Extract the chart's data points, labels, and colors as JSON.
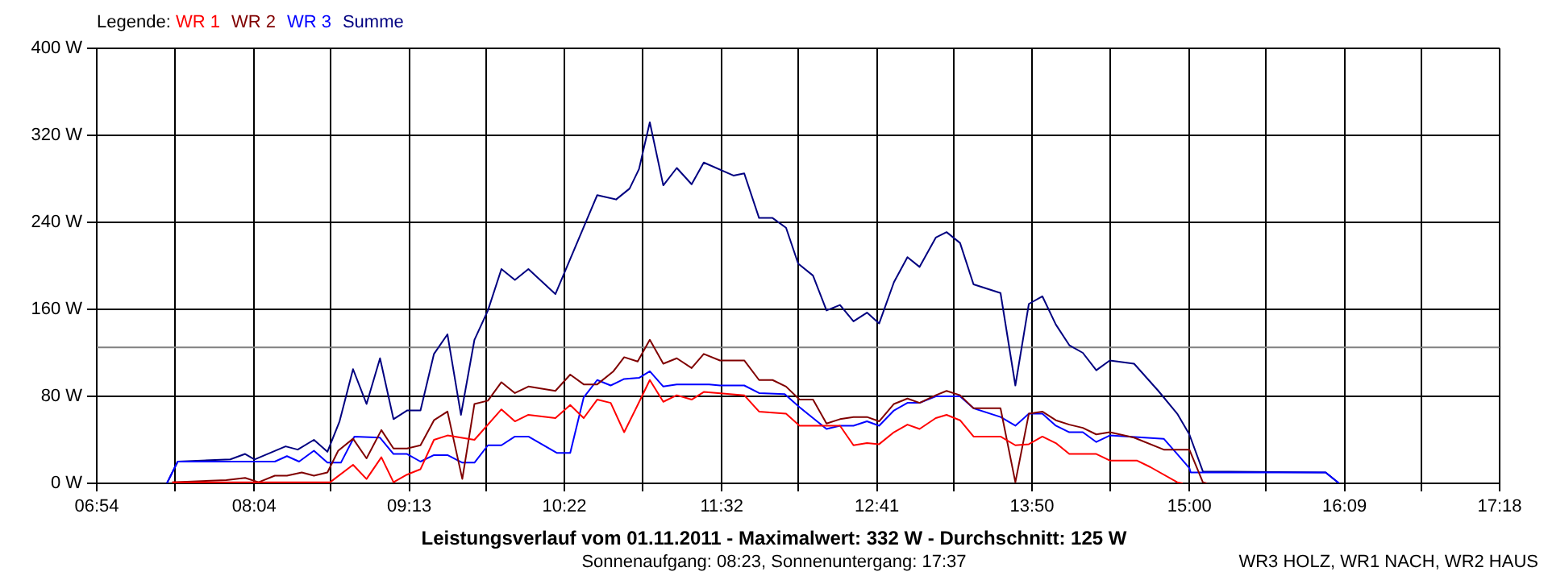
{
  "chart_data": {
    "type": "line",
    "title": "Leistungsverlauf vom 01.11.2011 - Maximalwert: 332 W - Durchschnitt: 125 W",
    "subtitle": "Sonnenaufgang: 08:23, Sonnenuntergang: 17:37",
    "annotations": [
      "WR3 HOLZ, WR1 NACH, WR2 HAUS"
    ],
    "legend_title": "Legende:",
    "legend": "top left",
    "grid": true,
    "marker": "none",
    "line_style": "solid",
    "xlim": [
      6.9,
      17.3
    ],
    "xticks": [
      {
        "value": 6.9,
        "label": "06:54"
      },
      {
        "value": 7.4778,
        "label": null
      },
      {
        "value": 8.0667,
        "label": "08:04"
      },
      {
        "value": 8.6333,
        "label": null
      },
      {
        "value": 9.2167,
        "label": "09:13"
      },
      {
        "value": 9.7889,
        "label": null
      },
      {
        "value": 10.3667,
        "label": "10:22"
      },
      {
        "value": 10.9444,
        "label": null
      },
      {
        "value": 11.5333,
        "label": "11:32"
      },
      {
        "value": 12.1,
        "label": null
      },
      {
        "value": 12.6833,
        "label": "12:41"
      },
      {
        "value": 13.2556,
        "label": null
      },
      {
        "value": 13.8333,
        "label": "13:50"
      },
      {
        "value": 14.4111,
        "label": null
      },
      {
        "value": 15.0,
        "label": "15:00"
      },
      {
        "value": 15.5667,
        "label": null
      },
      {
        "value": 16.15,
        "label": "16:09"
      },
      {
        "value": 16.7222,
        "label": null
      },
      {
        "value": 17.3,
        "label": "17:18"
      }
    ],
    "ylim": [
      0,
      400
    ],
    "yticks": [
      {
        "value": 0,
        "label": "0 W"
      },
      {
        "value": 80,
        "label": "80 W"
      },
      {
        "value": 160,
        "label": "160 W"
      },
      {
        "value": 240,
        "label": "240 W"
      },
      {
        "value": 320,
        "label": "320 W"
      },
      {
        "value": 400,
        "label": "400 W"
      }
    ],
    "ref_lines": [
      {
        "axis": "y",
        "value": 125,
        "color": "#808080"
      }
    ],
    "series": [
      {
        "name": "WR 1",
        "color": "#ff0000",
        "x": [
          7.46,
          8.06,
          8.63,
          8.8,
          8.9,
          9.01,
          9.1,
          9.2,
          9.3,
          9.4,
          9.5,
          9.7,
          9.9,
          10.0,
          10.1,
          10.3,
          10.41,
          10.51,
          10.61,
          10.71,
          10.81,
          10.91,
          11.0,
          11.1,
          11.2,
          11.31,
          11.4,
          11.7,
          11.81,
          12.01,
          12.11,
          12.41,
          12.51,
          12.61,
          12.7,
          12.81,
          12.91,
          13.0,
          13.12,
          13.2,
          13.3,
          13.4,
          13.6,
          13.71,
          13.81,
          13.91,
          14.01,
          14.11,
          14.31,
          14.41,
          14.61,
          14.71,
          14.91,
          14.95
        ],
        "values": [
          1,
          1,
          1,
          17,
          4,
          24,
          1,
          8,
          13,
          40,
          44,
          40,
          68,
          57,
          63,
          60,
          72,
          60,
          77,
          74,
          47,
          72,
          95,
          75,
          81,
          77,
          84,
          81,
          66,
          64,
          53,
          53,
          35,
          37,
          36,
          47,
          54,
          50,
          60,
          63,
          58,
          43,
          43,
          35,
          36,
          43,
          37,
          27,
          27,
          21,
          21,
          15,
          1,
          0
        ]
      },
      {
        "name": "WR 2",
        "color": "#800000",
        "x": [
          7.46,
          7.86,
          8.0,
          8.1,
          8.22,
          8.31,
          8.42,
          8.51,
          8.61,
          8.69,
          8.8,
          8.9,
          9.01,
          9.1,
          9.2,
          9.3,
          9.4,
          9.5,
          9.61,
          9.7,
          9.8,
          9.9,
          10.0,
          10.1,
          10.3,
          10.41,
          10.51,
          10.61,
          10.73,
          10.81,
          10.91,
          11.0,
          11.1,
          11.2,
          11.31,
          11.4,
          11.52,
          11.7,
          11.81,
          11.91,
          12.01,
          12.11,
          12.21,
          12.31,
          12.41,
          12.51,
          12.61,
          12.7,
          12.81,
          12.91,
          13.0,
          13.12,
          13.2,
          13.3,
          13.4,
          13.6,
          13.71,
          13.81,
          13.91,
          14.01,
          14.11,
          14.21,
          14.31,
          14.41,
          14.59,
          14.81,
          15.0,
          15.1,
          15.13
        ],
        "values": [
          1,
          3,
          5,
          1,
          7,
          7,
          10,
          7,
          10,
          30,
          41,
          23,
          49,
          32,
          32,
          35,
          58,
          66,
          4,
          73,
          76,
          93,
          83,
          89,
          85,
          100,
          91,
          91,
          103,
          116,
          112,
          132,
          110,
          115,
          106,
          119,
          113,
          113,
          95,
          95,
          89,
          77,
          77,
          55,
          59,
          61,
          61,
          57,
          73,
          78,
          74,
          81,
          85,
          81,
          69,
          69,
          1,
          64,
          66,
          58,
          54,
          51,
          45,
          47,
          42,
          31,
          31,
          1,
          0
        ]
      },
      {
        "name": "WR 3",
        "color": "#0000ff",
        "x": [
          7.42,
          7.5,
          8.22,
          8.31,
          8.4,
          8.51,
          8.61,
          8.71,
          8.81,
          9.0,
          9.1,
          9.2,
          9.3,
          9.4,
          9.5,
          9.61,
          9.7,
          9.8,
          9.9,
          10.0,
          10.1,
          10.31,
          10.41,
          10.51,
          10.61,
          10.71,
          10.81,
          10.92,
          11.0,
          11.1,
          11.2,
          11.44,
          11.52,
          11.7,
          11.81,
          12.0,
          12.11,
          12.21,
          12.31,
          12.41,
          12.51,
          12.61,
          12.7,
          12.81,
          12.91,
          13.0,
          13.12,
          13.3,
          13.4,
          13.6,
          13.71,
          13.81,
          13.91,
          14.01,
          14.11,
          14.21,
          14.31,
          14.41,
          14.81,
          14.91,
          15.0,
          15.01,
          16.01,
          16.11
        ],
        "values": [
          0,
          20,
          20,
          25,
          20,
          30,
          19,
          19,
          43,
          42,
          27,
          27,
          20,
          26,
          26,
          19,
          19,
          35,
          35,
          43,
          43,
          28,
          28,
          79,
          95,
          90,
          96,
          97,
          103,
          89,
          91,
          91,
          90,
          90,
          83,
          82,
          70,
          60,
          50,
          53,
          53,
          57,
          53,
          67,
          74,
          74,
          80,
          80,
          69,
          61,
          53,
          64,
          64,
          53,
          47,
          47,
          38,
          44,
          41,
          27,
          14,
          10,
          10,
          0
        ]
      },
      {
        "name": "Summe",
        "color": "#000080",
        "x": [
          7.42,
          7.5,
          7.89,
          8.0,
          8.07,
          8.3,
          8.39,
          8.51,
          8.61,
          8.7,
          8.8,
          8.9,
          9.0,
          9.1,
          9.2,
          9.3,
          9.4,
          9.5,
          9.6,
          9.7,
          9.8,
          9.9,
          10.0,
          10.1,
          10.3,
          10.61,
          10.75,
          10.85,
          10.92,
          11.0,
          11.1,
          11.2,
          11.31,
          11.4,
          11.62,
          11.7,
          11.81,
          11.91,
          12.01,
          12.1,
          12.21,
          12.31,
          12.41,
          12.51,
          12.61,
          12.7,
          12.81,
          12.91,
          13.0,
          13.12,
          13.2,
          13.3,
          13.4,
          13.6,
          13.71,
          13.81,
          13.91,
          14.01,
          14.11,
          14.21,
          14.31,
          14.41,
          14.59,
          14.77,
          14.91,
          15.0,
          15.1,
          16.01,
          16.11
        ],
        "values": [
          0,
          20,
          22,
          27,
          22,
          34,
          31,
          40,
          29,
          57,
          105,
          73,
          115,
          59,
          67,
          67,
          119,
          137,
          63,
          132,
          159,
          197,
          187,
          197,
          174,
          265,
          261,
          271,
          289,
          332,
          274,
          290,
          275,
          295,
          283,
          285,
          244,
          244,
          235,
          202,
          191,
          159,
          164,
          149,
          157,
          147,
          185,
          208,
          199,
          226,
          231,
          221,
          183,
          175,
          90,
          165,
          172,
          146,
          127,
          120,
          104,
          113,
          110,
          85,
          64,
          45,
          11,
          10,
          0
        ]
      }
    ]
  }
}
